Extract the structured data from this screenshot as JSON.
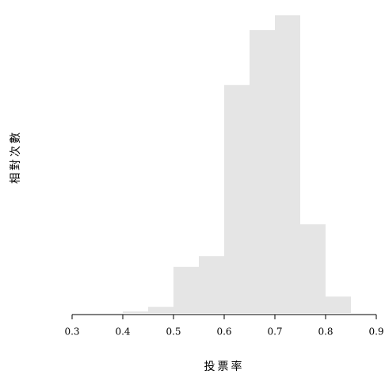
{
  "chart_data": {
    "type": "histogram",
    "xlabel": "投票率",
    "ylabel": "相對次數",
    "bins": [
      0.4,
      0.45,
      0.5,
      0.55,
      0.6,
      0.65,
      0.7,
      0.75,
      0.8,
      0.85
    ],
    "values": [
      0.03,
      0.12,
      0.9,
      1.11,
      4.45,
      5.52,
      5.81,
      1.73,
      0.32
    ],
    "color": "#e5e5e5",
    "xlim": [
      0.3,
      0.9
    ],
    "xticks": [
      0.3,
      0.4,
      0.5,
      0.6,
      0.7,
      0.8,
      0.9
    ],
    "ylim": [
      0,
      6
    ]
  }
}
